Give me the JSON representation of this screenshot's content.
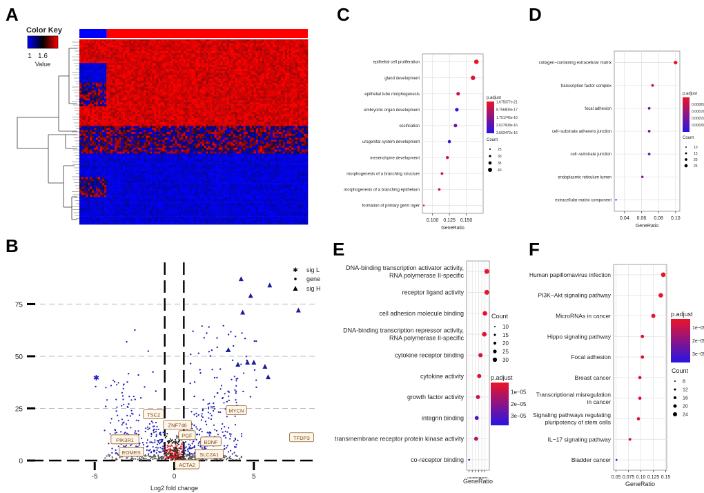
{
  "panels": {
    "a": "A",
    "b": "B",
    "c": "C",
    "d": "D",
    "e": "E",
    "f": "F"
  },
  "colors": {
    "low": "#0000ff",
    "mid": "#000000",
    "high": "#ff0000",
    "sig_low": "#1a1acc",
    "sig_high": "#1a1a99",
    "label_border": "#8b5a2b",
    "label_fill": "#fff6ea",
    "label_text": "#7a4a1a"
  },
  "chart_data": [
    {
      "panel": "A",
      "type": "heatmap",
      "color_key": {
        "title": "Color Key",
        "ticks": [
          "1",
          "1.6"
        ],
        "xlabel": "Value"
      },
      "column_groups": [
        {
          "fraction": 0.12,
          "color": "#0000ff"
        },
        {
          "fraction": 0.88,
          "color": "#ff0000"
        }
      ],
      "row_blocks": [
        {
          "rows": 12,
          "left": "red",
          "right": "red"
        },
        {
          "rows": 10,
          "left": "blue",
          "right": "red"
        },
        {
          "rows": 12,
          "left": "mixed",
          "right": "red"
        },
        {
          "rows": 10,
          "left": "red",
          "right": "red"
        },
        {
          "rows": 14,
          "left": "mixed",
          "right": "mixed"
        },
        {
          "rows": 12,
          "left": "blue",
          "right": "blue"
        },
        {
          "rows": 10,
          "left": "mixed",
          "right": "blue"
        },
        {
          "rows": 14,
          "left": "blue",
          "right": "blue"
        }
      ]
    },
    {
      "panel": "B",
      "type": "scatter",
      "xlabel": "Log2 fold change",
      "xlim": [
        -9,
        9
      ],
      "ylim": [
        0,
        95
      ],
      "xticks": [
        -5,
        0,
        5
      ],
      "yticks": [
        0,
        25,
        50,
        75
      ],
      "vlines": [
        -0.6,
        0.6
      ],
      "hlines": [
        0,
        25,
        50,
        75
      ],
      "legend": [
        {
          "label": "sig L",
          "shape": "asterisk"
        },
        {
          "label": "gene",
          "shape": "dot"
        },
        {
          "label": "sig H",
          "shape": "triangle"
        }
      ],
      "sig_low": [
        {
          "x": -4.9,
          "y": 40
        }
      ],
      "sig_high": [
        {
          "x": 4.2,
          "y": 87
        },
        {
          "x": 6.0,
          "y": 84
        },
        {
          "x": 4.8,
          "y": 79
        },
        {
          "x": 4.3,
          "y": 71
        },
        {
          "x": 7.8,
          "y": 72
        },
        {
          "x": 3.4,
          "y": 53
        },
        {
          "x": 4.0,
          "y": 46
        },
        {
          "x": 5.0,
          "y": 47
        },
        {
          "x": 4.6,
          "y": 47
        },
        {
          "x": 5.7,
          "y": 45
        },
        {
          "x": 5.9,
          "y": 40
        }
      ],
      "gene_labels": [
        {
          "text": "TSC2",
          "x": -1.3,
          "y": 22
        },
        {
          "text": "ZNF746",
          "x": 0.2,
          "y": 17
        },
        {
          "text": "MYCN",
          "x": 3.9,
          "y": 24
        },
        {
          "text": "PIK3R1",
          "x": -3.1,
          "y": 10
        },
        {
          "text": "PGF",
          "x": 0.8,
          "y": 12
        },
        {
          "text": "BDNF",
          "x": 2.3,
          "y": 9
        },
        {
          "text": "EOMES",
          "x": -2.7,
          "y": 4
        },
        {
          "text": "SLC2A1",
          "x": 2.2,
          "y": 3
        },
        {
          "text": "ACTA2",
          "x": 0.8,
          "y": -2
        },
        {
          "text": "TFDP3",
          "x": 8.0,
          "y": 11
        }
      ]
    },
    {
      "panel": "C",
      "type": "scatter",
      "subtype": "dotplot",
      "xlabel": "GeneRatio",
      "xlim": [
        0.085,
        0.175
      ],
      "xticks": [
        0.1,
        0.125,
        0.15
      ],
      "xtick_labels": [
        "0.100",
        "0.125",
        "0.150"
      ],
      "categories": [
        "epithelial cell proliferation",
        "gland development",
        "epithelial tube morphogenesis",
        "embryonic organ development",
        "ossification",
        "urogenital system development",
        "mesenchyme development",
        "morphogenesis of a branching structure",
        "morphogenesis of a branching epithelium",
        "formation of primary germ layer"
      ],
      "gene_ratio": [
        0.165,
        0.16,
        0.138,
        0.136,
        0.134,
        0.125,
        0.122,
        0.114,
        0.11,
        0.087
      ],
      "count": [
        40,
        39,
        34,
        34,
        33,
        31,
        30,
        28,
        27,
        22
      ],
      "p_adjust_color": [
        0.0,
        0.1,
        0.15,
        0.95,
        0.6,
        0.9,
        0.2,
        0.1,
        0.1,
        0.05
      ],
      "color_legend": {
        "title": "p.adjust",
        "labels": [
          "1.675077e-21",
          "8.756806e-17",
          "1.751745e-16",
          "2.627608e-16",
          "3.503472e-16"
        ]
      },
      "size_legend": {
        "title": "Count",
        "labels": [
          "25",
          "30",
          "35",
          "40"
        ]
      }
    },
    {
      "panel": "D",
      "type": "scatter",
      "subtype": "dotplot",
      "xlabel": "GeneRatio",
      "xlim": [
        0.028,
        0.105
      ],
      "xticks": [
        0.04,
        0.06,
        0.08,
        0.1
      ],
      "xtick_labels": [
        "0.04",
        "0.06",
        "0.08",
        "0.10"
      ],
      "categories": [
        "collagen−containing extracellular matrix",
        "transcription factor complex",
        "focal adhesion",
        "cell−substrate adherens junction",
        "cell−substrate junction",
        "endoplasmic reticulum lumen",
        "extracellular matrix component"
      ],
      "gene_ratio": [
        0.1,
        0.073,
        0.069,
        0.069,
        0.069,
        0.061,
        0.03
      ],
      "count": [
        26,
        18,
        17,
        17,
        17,
        15,
        8
      ],
      "p_adjust_color": [
        0.0,
        0.1,
        0.7,
        0.7,
        0.7,
        0.5,
        0.9
      ],
      "color_legend": {
        "title": "p.adjust",
        "labels": [
          "0.00005",
          "0.00010",
          "0.00015",
          "0.00020"
        ]
      },
      "size_legend": {
        "title": "Count",
        "labels": [
          "10",
          "15",
          "20",
          "25"
        ]
      }
    },
    {
      "panel": "E",
      "type": "scatter",
      "subtype": "dotplot",
      "xlabel": "GeneRatio",
      "xlim": [
        0.036,
        0.072
      ],
      "xticks": [
        0.04,
        0.045,
        0.05,
        0.055,
        0.06,
        0.065
      ],
      "xtick_labels": [
        "0.04",
        "0.045",
        "0.05",
        "0.055",
        "0.06",
        "0.065"
      ],
      "categories": [
        [
          "DNA-binding transcription activator activity,",
          "RNA polymerase II-specific"
        ],
        [
          "receptor ligand activity"
        ],
        [
          "cell adhesion molecule binding"
        ],
        [
          "DNA-binding transcription repressor activity,",
          "RNA polymerase II-specific"
        ],
        [
          "cytokine receptor binding"
        ],
        [
          "cytokine activity"
        ],
        [
          "growth factor activity"
        ],
        [
          "integrin binding"
        ],
        [
          "transmembrane receptor protein kinase activity"
        ],
        [
          "co-receptor binding"
        ]
      ],
      "gene_ratio": [
        0.068,
        0.068,
        0.065,
        0.064,
        0.058,
        0.056,
        0.054,
        0.052,
        0.051,
        0.04
      ],
      "count": [
        33,
        33,
        31,
        31,
        28,
        27,
        26,
        25,
        25,
        5
      ],
      "p_adjust_color": [
        0.0,
        0.0,
        0.05,
        0.05,
        0.1,
        0.1,
        0.15,
        0.8,
        0.3,
        0.9
      ],
      "color_legend": {
        "title": "p.adjust",
        "labels": [
          "1e−05",
          "2e−05",
          "3e−05"
        ]
      },
      "size_legend": {
        "title": "Count",
        "labels": [
          "10",
          "15",
          "20",
          "25",
          "30"
        ]
      }
    },
    {
      "panel": "F",
      "type": "scatter",
      "subtype": "dotplot",
      "xlabel": "GeneRatio",
      "xlim": [
        0.045,
        0.152
      ],
      "xticks": [
        0.05,
        0.075,
        0.1,
        0.125,
        0.15
      ],
      "xtick_labels": [
        "0.05",
        "0.075",
        "0.10",
        "0.125",
        "0.15"
      ],
      "categories": [
        [
          "Human papillomavirus infection"
        ],
        [
          "PI3K−Akt signaling pathway"
        ],
        [
          "MicroRNAs in cancer"
        ],
        [
          "Hippo signaling pathway"
        ],
        [
          "Focal adhesion"
        ],
        [
          "Breast cancer"
        ],
        [
          "Transcriptional misregulation",
          "in cancer"
        ],
        [
          "Signaling pathways regulating",
          "pluripotency of stem cells"
        ],
        [
          "IL−17 signaling pathway"
        ],
        [
          "Bladder cancer"
        ]
      ],
      "gene_ratio": [
        0.145,
        0.14,
        0.125,
        0.103,
        0.103,
        0.098,
        0.098,
        0.095,
        0.078,
        0.051
      ],
      "count": [
        24,
        23,
        21,
        17,
        17,
        16,
        16,
        16,
        13,
        8
      ],
      "p_adjust_color": [
        0.0,
        0.0,
        0.02,
        0.05,
        0.08,
        0.08,
        0.08,
        0.1,
        0.15,
        0.95
      ],
      "color_legend": {
        "title": "p.adjust",
        "labels": [
          "1e−05",
          "2e−05",
          "3e−05"
        ]
      },
      "size_legend": {
        "title": "Count",
        "labels": [
          "8",
          "12",
          "16",
          "20",
          "24"
        ]
      }
    }
  ]
}
